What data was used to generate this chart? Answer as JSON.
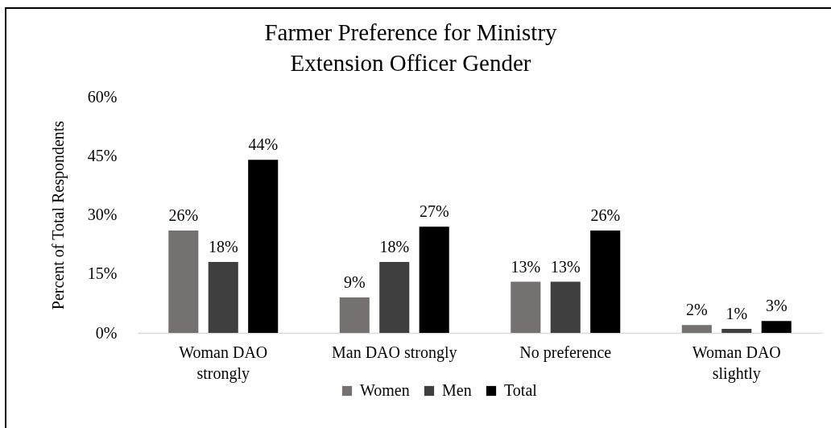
{
  "chart_data": {
    "type": "bar",
    "title": "Farmer Preference for Ministry Extension Officer Gender",
    "ylabel": "Percent of Total Respondents",
    "categories": [
      "Woman DAO strongly",
      "Man DAO strongly",
      "No preference",
      "Woman DAO slightly"
    ],
    "series": [
      {
        "name": "Women",
        "color": "#767171",
        "values": [
          26,
          9,
          13,
          2
        ],
        "value_labels": [
          "26%",
          "9%",
          "13%",
          "2%"
        ]
      },
      {
        "name": "Men",
        "color": "#3f3f3f",
        "values": [
          18,
          18,
          13,
          1
        ],
        "value_labels": [
          "18%",
          "18%",
          "13%",
          "1%"
        ]
      },
      {
        "name": "Total",
        "color": "#000000",
        "values": [
          44,
          27,
          26,
          3
        ],
        "value_labels": [
          "44%",
          "27%",
          "26%",
          "3%"
        ]
      }
    ],
    "ylim": [
      0,
      60
    ],
    "yticks": [
      {
        "value": 0,
        "label": "0%"
      },
      {
        "value": 15,
        "label": "15%"
      },
      {
        "value": 30,
        "label": "30%"
      },
      {
        "value": 45,
        "label": "45%"
      },
      {
        "value": 60,
        "label": "60%"
      }
    ],
    "legend": "bottom"
  }
}
